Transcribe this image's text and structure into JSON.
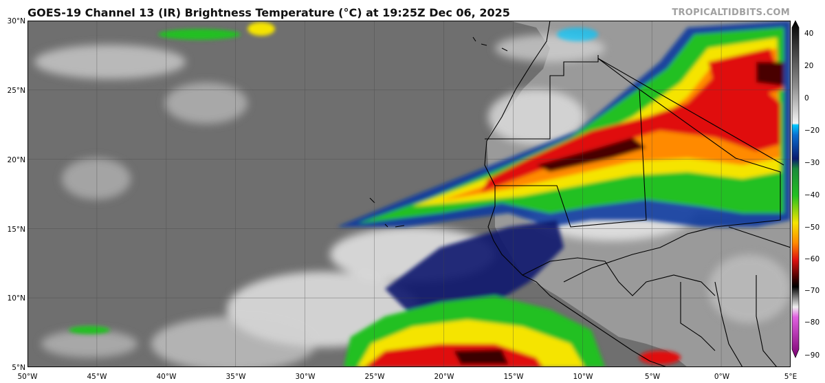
{
  "title": "GOES-19 Channel 13 (IR) Brightness Temperature (°C) at 19:25Z Dec 06, 2025",
  "credit": "TROPICALTIDBITS.COM",
  "map": {
    "lat_labels": [
      "30°N",
      "25°N",
      "20°N",
      "15°N",
      "10°N",
      "5°N"
    ],
    "lon_labels": [
      "50°W",
      "45°W",
      "40°W",
      "35°W",
      "30°W",
      "25°W",
      "20°W",
      "15°W",
      "10°W",
      "5°W",
      "0°W",
      "5°E"
    ]
  },
  "colorbar": {
    "ticks": [
      "40",
      "20",
      "0",
      "−20",
      "−30",
      "−40",
      "−50",
      "−60",
      "−70",
      "−80",
      "−90"
    ],
    "colors": {
      "warm_top": "#000000",
      "gray_mid": "#8a8a8a",
      "white": "#f4f4f4",
      "cyan": "#00c8ff",
      "navy": "#0a1a6e",
      "green": "#22c020",
      "yellow": "#f5e400",
      "orange": "#ff8a00",
      "red": "#e01010",
      "dark_red": "#300000",
      "magenta": "#e060e0",
      "purple": "#7a0070"
    }
  }
}
